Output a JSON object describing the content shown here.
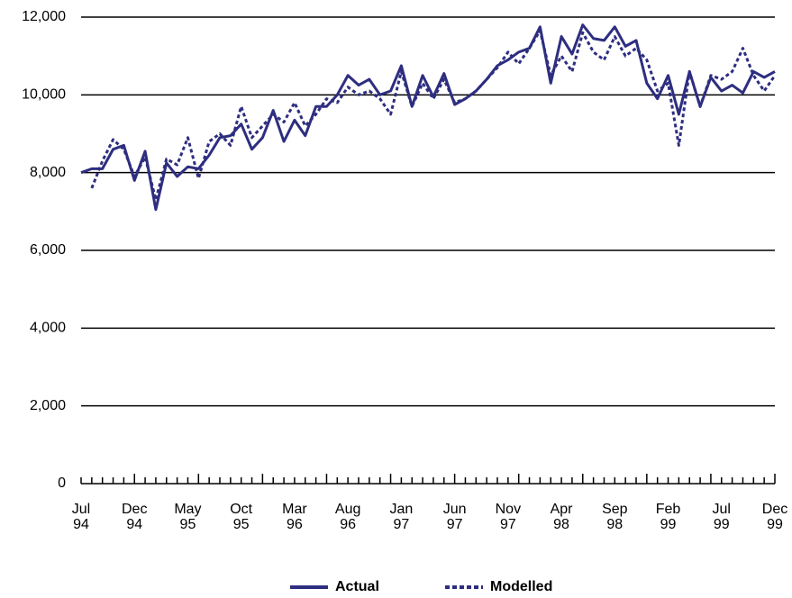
{
  "chart_data": {
    "type": "line",
    "categories": [
      "Jul 94",
      null,
      null,
      null,
      null,
      "Dec 94",
      null,
      null,
      null,
      null,
      "May 95",
      null,
      null,
      null,
      null,
      "Oct 95",
      null,
      null,
      null,
      null,
      "Mar 96",
      null,
      null,
      null,
      null,
      "Aug 96",
      null,
      null,
      null,
      null,
      "Jan 97",
      null,
      null,
      null,
      null,
      "Jun 97",
      null,
      null,
      null,
      null,
      "Nov 97",
      null,
      null,
      null,
      null,
      "Apr 98",
      null,
      null,
      null,
      null,
      "Sep 98",
      null,
      null,
      null,
      null,
      "Feb 99",
      null,
      null,
      null,
      null,
      "Jul 99",
      null,
      null,
      null,
      null,
      "Dec 99"
    ],
    "series": [
      {
        "name": "Actual",
        "color": "#2e2e80",
        "dashed": false,
        "values": [
          8000,
          8100,
          8100,
          8600,
          8700,
          7800,
          8550,
          7050,
          8250,
          7900,
          8150,
          8100,
          8450,
          8900,
          8950,
          9250,
          8600,
          8900,
          9600,
          8800,
          9350,
          8950,
          9700,
          9700,
          10000,
          10500,
          10250,
          10400,
          10000,
          10100,
          10750,
          9700,
          10500,
          9950,
          10550,
          9750,
          9900,
          10100,
          10400,
          10750,
          10900,
          11100,
          11200,
          11750,
          10300,
          11500,
          11050,
          11800,
          11450,
          11400,
          11750,
          11250,
          11400,
          10300,
          9900,
          10500,
          9500,
          10600,
          9700,
          10450,
          10100,
          10250,
          10050,
          10600,
          10450,
          10600
        ]
      },
      {
        "name": "Modelled",
        "color": "#2e2e80",
        "dashed": true,
        "values": [
          null,
          7600,
          8300,
          8850,
          8600,
          7900,
          8400,
          7300,
          8350,
          8200,
          8900,
          7850,
          8800,
          9000,
          8700,
          9700,
          8900,
          9200,
          9500,
          9300,
          9800,
          9200,
          9500,
          9900,
          9800,
          10200,
          10000,
          10100,
          9900,
          9500,
          10600,
          9700,
          10300,
          9900,
          10400,
          9800,
          9900,
          10100,
          10400,
          10700,
          11100,
          10800,
          11200,
          11650,
          10500,
          11000,
          10600,
          11600,
          11100,
          10900,
          11500,
          11000,
          11200,
          10900,
          10100,
          10300,
          8700,
          10600,
          9700,
          10500,
          10400,
          10600,
          11200,
          10500,
          10100,
          10500
        ]
      }
    ],
    "ylim": [
      0,
      12000
    ],
    "yticks": [
      0,
      {
        "value": 2000,
        "label": "2,000"
      },
      {
        "value": 4000,
        "label": "4,000"
      },
      {
        "value": 6000,
        "label": "6,000"
      },
      {
        "value": 8000,
        "label": "8,000"
      },
      {
        "value": 10000,
        "label": "10,000"
      },
      {
        "value": 12000,
        "label": "12,000"
      }
    ],
    "grid": true,
    "legend": "bottom"
  }
}
